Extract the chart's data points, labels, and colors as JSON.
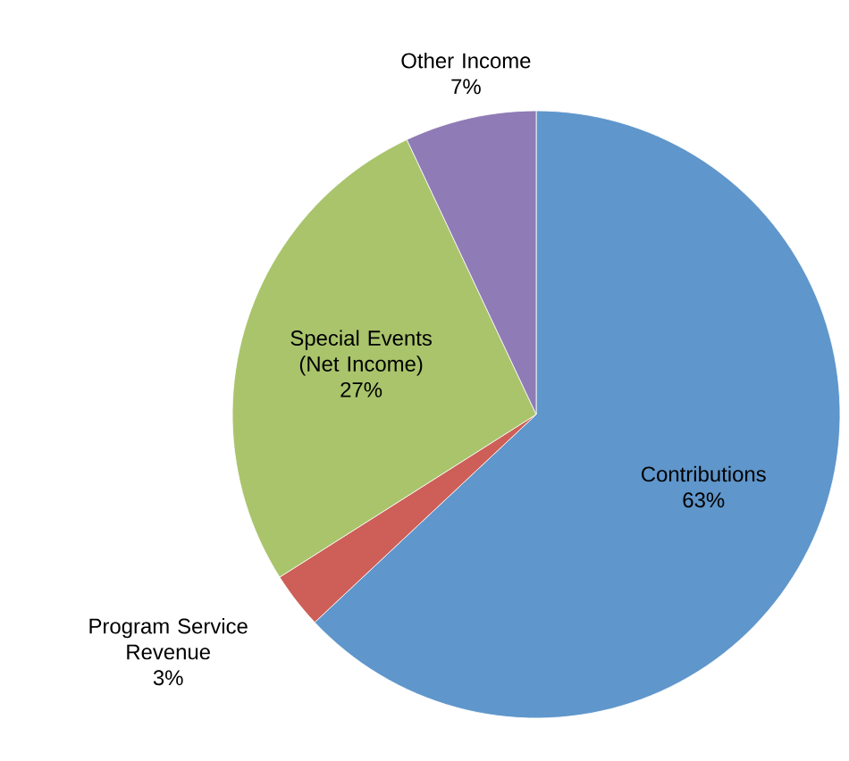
{
  "chart_data": {
    "type": "pie",
    "categories": [
      "Contributions",
      "Program Service Revenue",
      "Special Events (Net Income)",
      "Other Income"
    ],
    "values": [
      63,
      3,
      27,
      7
    ],
    "value_labels": [
      "63%",
      "3%",
      "27%",
      "7%"
    ],
    "colors": [
      "#5f96cb",
      "#cd5f58",
      "#a9c46b",
      "#8f7bb5"
    ]
  }
}
